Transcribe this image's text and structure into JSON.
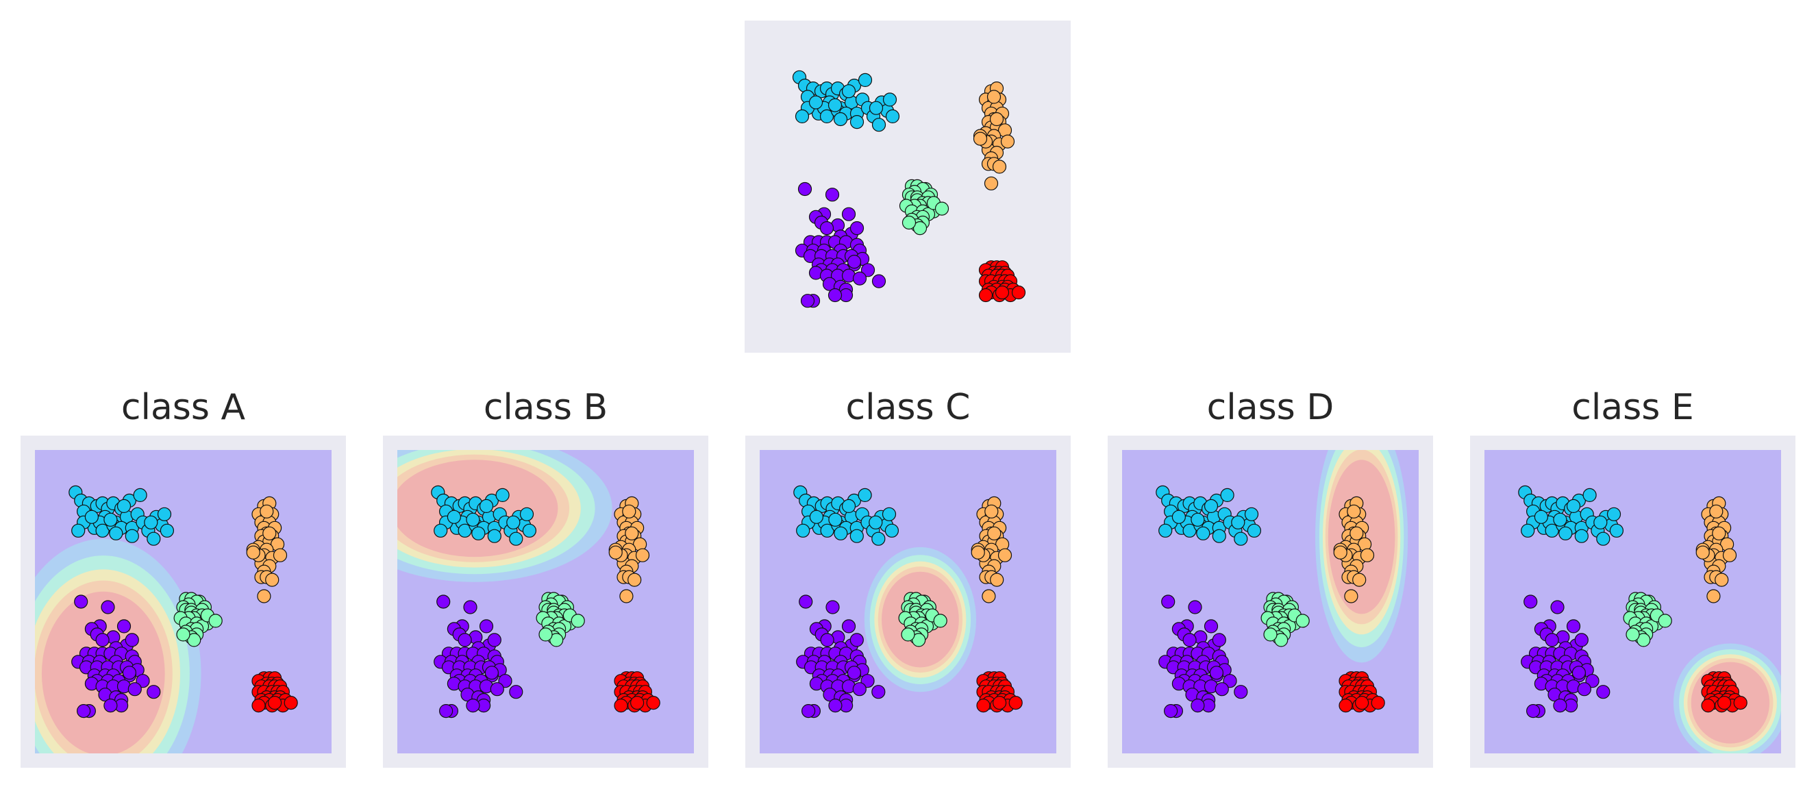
{
  "chart_data": [
    {
      "type": "scatter",
      "title": "",
      "xlabel": "",
      "ylabel": "",
      "xlim": [
        0,
        100
      ],
      "ylim": [
        0,
        100
      ],
      "grid": false,
      "series": [
        {
          "color": "#8000ff",
          "x": [
            12,
            22,
            19,
            28,
            16,
            18,
            24,
            20,
            29,
            25,
            14,
            17,
            20,
            23,
            27,
            31,
            11,
            15,
            19,
            25,
            32,
            14,
            18,
            22,
            26,
            29,
            33,
            17,
            21,
            24,
            30,
            35,
            18,
            22,
            26,
            16,
            20,
            24,
            28,
            32,
            21,
            25,
            27,
            39,
            15,
            13,
            27,
            23,
            30,
            31
          ],
          "y": [
            50,
            48,
            41,
            41,
            40,
            38,
            37,
            36,
            34,
            33,
            31,
            31,
            31,
            31,
            31,
            30,
            28,
            28,
            28,
            28,
            28,
            26,
            26,
            26,
            26,
            26,
            25,
            23,
            23,
            23,
            23,
            21,
            21,
            21,
            21,
            20,
            19,
            19,
            19,
            18,
            16,
            15,
            14,
            17,
            10,
            10,
            12,
            12,
            24,
            36
          ]
        },
        {
          "color": "#1ac7f0",
          "x": [
            10,
            12,
            15,
            13,
            18,
            20,
            22,
            24,
            27,
            30,
            21,
            25,
            17,
            13,
            19,
            29,
            33,
            20,
            24,
            16,
            27,
            31,
            35,
            40,
            42,
            44,
            37,
            39,
            11,
            31,
            25,
            23,
            38,
            43,
            28,
            34
          ],
          "y": [
            90,
            87,
            86,
            83,
            85,
            86,
            84,
            86,
            84,
            87,
            81,
            79,
            77,
            79,
            79,
            81,
            82,
            76,
            78,
            81,
            77,
            77,
            79,
            81,
            78,
            76,
            76,
            73,
            76,
            74,
            75,
            80,
            79,
            82,
            85,
            89
          ]
        },
        {
          "color": "#80ffb4",
          "x": [
            51,
            53,
            56,
            55,
            52,
            50,
            58,
            51,
            53,
            57,
            53,
            55,
            57,
            54,
            52,
            49,
            51,
            55,
            59,
            53,
            57,
            55,
            51,
            55,
            53,
            54,
            59,
            62,
            50
          ],
          "y": [
            51,
            51,
            50,
            50,
            49,
            48,
            48,
            47,
            47,
            47,
            46,
            45,
            45,
            44,
            44,
            44,
            42,
            42,
            42,
            40,
            41,
            40,
            39,
            38,
            37,
            36,
            45,
            43,
            38
          ]
        },
        {
          "color": "#ffb360",
          "x": [
            80,
            82,
            78,
            81,
            83,
            79,
            82,
            80,
            84,
            81,
            79,
            83,
            80,
            82,
            78,
            85,
            81,
            80,
            83,
            79,
            82,
            80,
            79,
            81,
            83,
            78,
            86,
            76,
            82,
            81,
            76,
            80
          ],
          "y": [
            85,
            86,
            82,
            81,
            82,
            79,
            79,
            77,
            77,
            75,
            74,
            74,
            72,
            72,
            70,
            71,
            69,
            67,
            66,
            64,
            63,
            61,
            59,
            59,
            58,
            67,
            67,
            69,
            75,
            83,
            68,
            52
          ]
        },
        {
          "color": "#ff0000",
          "x": [
            80,
            82,
            84,
            78,
            81,
            83,
            85,
            79,
            82,
            84,
            86,
            78,
            80,
            83,
            85,
            87,
            81,
            84,
            86,
            79,
            82,
            85,
            88,
            80,
            83,
            87,
            78,
            84,
            90
          ],
          "y": [
            22,
            22,
            22,
            21,
            20,
            20,
            20,
            19,
            19,
            19,
            19,
            17,
            17,
            17,
            17,
            17,
            15,
            15,
            15,
            14,
            14,
            14,
            14,
            13,
            12,
            12,
            12,
            13,
            13
          ]
        }
      ]
    },
    {
      "type": "scatter",
      "title": "class A",
      "highlighted_class": "purple",
      "background": "decision-contour"
    },
    {
      "type": "scatter",
      "title": "class B",
      "highlighted_class": "cyan",
      "background": "decision-contour"
    },
    {
      "type": "scatter",
      "title": "class C",
      "highlighted_class": "green",
      "background": "decision-contour"
    },
    {
      "type": "scatter",
      "title": "class D",
      "highlighted_class": "orange",
      "background": "decision-contour"
    },
    {
      "type": "scatter",
      "title": "class E",
      "highlighted_class": "red",
      "background": "decision-contour"
    }
  ],
  "palette": {
    "panel_bg": "#eaeaf2",
    "region_low": "#bdb4f5",
    "region_mid1": "#aed3f2",
    "region_mid2": "#b8f0e0",
    "region_mid3": "#f2e9bb",
    "region_mid4": "#f3cfb3",
    "region_high": "#f0b2b0",
    "marker_edge": "#111111"
  }
}
